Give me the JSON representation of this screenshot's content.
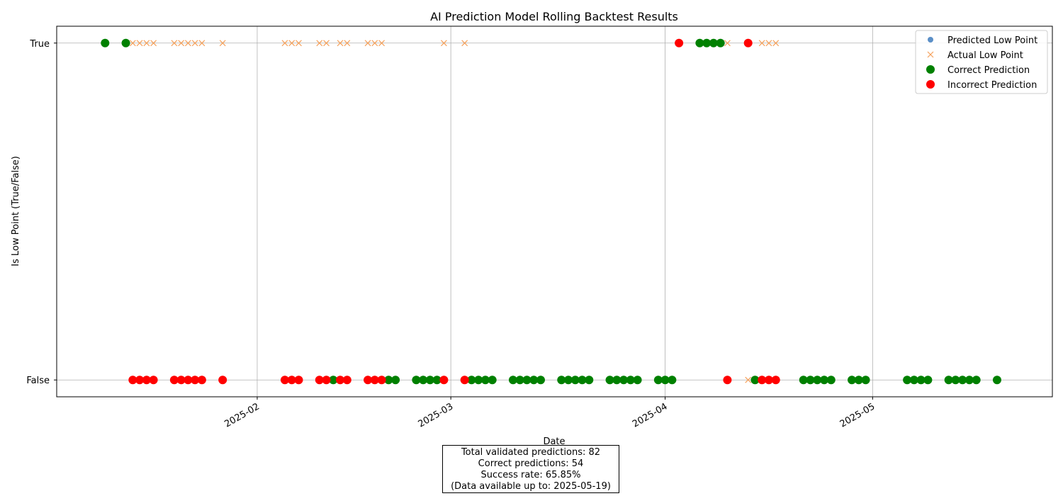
{
  "chart_data": {
    "type": "scatter",
    "title": "AI Prediction Model Rolling Backtest Results",
    "xlabel": "Date",
    "ylabel": "Is Low Point (True/False)",
    "xlim": [
      "2025-01-03",
      "2025-05-27"
    ],
    "xticks": [
      "2025-02",
      "2025-03",
      "2025-04",
      "2025-05"
    ],
    "ylim": [
      -0.05,
      1.05
    ],
    "yticks": [
      {
        "label": "False",
        "value": 0
      },
      {
        "label": "True",
        "value": 1
      }
    ],
    "grid": true,
    "legend_position": "top-right",
    "legend": [
      {
        "label": "Predicted Low Point",
        "marker": "circle-small",
        "color": "#5b8fc7"
      },
      {
        "label": "Actual Low Point",
        "marker": "x",
        "color": "#f5a05a"
      },
      {
        "label": "Correct Prediction",
        "marker": "circle",
        "color": "#008000"
      },
      {
        "label": "Incorrect Prediction",
        "marker": "circle",
        "color": "#ff0000"
      }
    ],
    "series": [
      {
        "name": "Actual Low Point",
        "marker": "x",
        "color": "#f5a05a",
        "points": [
          [
            "2025-01-14",
            1
          ],
          [
            "2025-01-15",
            1
          ],
          [
            "2025-01-16",
            1
          ],
          [
            "2025-01-17",
            1
          ],
          [
            "2025-01-20",
            1
          ],
          [
            "2025-01-21",
            1
          ],
          [
            "2025-01-22",
            1
          ],
          [
            "2025-01-23",
            1
          ],
          [
            "2025-01-24",
            1
          ],
          [
            "2025-01-27",
            1
          ],
          [
            "2025-02-05",
            1
          ],
          [
            "2025-02-06",
            1
          ],
          [
            "2025-02-07",
            1
          ],
          [
            "2025-02-10",
            1
          ],
          [
            "2025-02-11",
            1
          ],
          [
            "2025-02-13",
            1
          ],
          [
            "2025-02-14",
            1
          ],
          [
            "2025-02-17",
            1
          ],
          [
            "2025-02-18",
            1
          ],
          [
            "2025-02-19",
            1
          ],
          [
            "2025-02-28",
            1
          ],
          [
            "2025-03-03",
            1
          ],
          [
            "2025-04-02",
            0
          ],
          [
            "2025-04-10",
            1
          ],
          [
            "2025-04-13",
            0
          ],
          [
            "2025-04-15",
            1
          ],
          [
            "2025-04-16",
            1
          ],
          [
            "2025-04-17",
            1
          ]
        ]
      },
      {
        "name": "Correct Prediction",
        "marker": "circle",
        "color": "#008000",
        "points": [
          [
            "2025-01-10",
            1
          ],
          [
            "2025-01-13",
            1
          ],
          [
            "2025-02-12",
            0
          ],
          [
            "2025-02-20",
            0
          ],
          [
            "2025-02-21",
            0
          ],
          [
            "2025-02-24",
            0
          ],
          [
            "2025-02-25",
            0
          ],
          [
            "2025-02-26",
            0
          ],
          [
            "2025-02-27",
            0
          ],
          [
            "2025-03-04",
            0
          ],
          [
            "2025-03-05",
            0
          ],
          [
            "2025-03-06",
            0
          ],
          [
            "2025-03-07",
            0
          ],
          [
            "2025-03-10",
            0
          ],
          [
            "2025-03-11",
            0
          ],
          [
            "2025-03-12",
            0
          ],
          [
            "2025-03-13",
            0
          ],
          [
            "2025-03-14",
            0
          ],
          [
            "2025-03-17",
            0
          ],
          [
            "2025-03-18",
            0
          ],
          [
            "2025-03-19",
            0
          ],
          [
            "2025-03-20",
            0
          ],
          [
            "2025-03-21",
            0
          ],
          [
            "2025-03-24",
            0
          ],
          [
            "2025-03-25",
            0
          ],
          [
            "2025-03-26",
            0
          ],
          [
            "2025-03-27",
            0
          ],
          [
            "2025-03-28",
            0
          ],
          [
            "2025-03-31",
            0
          ],
          [
            "2025-04-01",
            0
          ],
          [
            "2025-04-02",
            0
          ],
          [
            "2025-04-06",
            1
          ],
          [
            "2025-04-07",
            1
          ],
          [
            "2025-04-08",
            1
          ],
          [
            "2025-04-09",
            1
          ],
          [
            "2025-04-14",
            0
          ],
          [
            "2025-04-21",
            0
          ],
          [
            "2025-04-22",
            0
          ],
          [
            "2025-04-23",
            0
          ],
          [
            "2025-04-24",
            0
          ],
          [
            "2025-04-25",
            0
          ],
          [
            "2025-04-28",
            0
          ],
          [
            "2025-04-29",
            0
          ],
          [
            "2025-04-30",
            0
          ],
          [
            "2025-05-06",
            0
          ],
          [
            "2025-05-07",
            0
          ],
          [
            "2025-05-08",
            0
          ],
          [
            "2025-05-09",
            0
          ],
          [
            "2025-05-12",
            0
          ],
          [
            "2025-05-13",
            0
          ],
          [
            "2025-05-14",
            0
          ],
          [
            "2025-05-15",
            0
          ],
          [
            "2025-05-16",
            0
          ],
          [
            "2025-05-19",
            0
          ]
        ]
      },
      {
        "name": "Incorrect Prediction",
        "marker": "circle",
        "color": "#ff0000",
        "points": [
          [
            "2025-01-14",
            0
          ],
          [
            "2025-01-15",
            0
          ],
          [
            "2025-01-16",
            0
          ],
          [
            "2025-01-17",
            0
          ],
          [
            "2025-01-20",
            0
          ],
          [
            "2025-01-21",
            0
          ],
          [
            "2025-01-22",
            0
          ],
          [
            "2025-01-23",
            0
          ],
          [
            "2025-01-24",
            0
          ],
          [
            "2025-01-27",
            0
          ],
          [
            "2025-02-05",
            0
          ],
          [
            "2025-02-06",
            0
          ],
          [
            "2025-02-07",
            0
          ],
          [
            "2025-02-10",
            0
          ],
          [
            "2025-02-11",
            0
          ],
          [
            "2025-02-13",
            0
          ],
          [
            "2025-02-14",
            0
          ],
          [
            "2025-02-17",
            0
          ],
          [
            "2025-02-18",
            0
          ],
          [
            "2025-02-19",
            0
          ],
          [
            "2025-02-28",
            0
          ],
          [
            "2025-03-03",
            0
          ],
          [
            "2025-04-03",
            1
          ],
          [
            "2025-04-10",
            0
          ],
          [
            "2025-04-13",
            1
          ],
          [
            "2025-04-15",
            0
          ],
          [
            "2025-04-16",
            0
          ],
          [
            "2025-04-17",
            0
          ]
        ]
      }
    ]
  },
  "summary": {
    "total": "Total validated predictions: 82",
    "correct": "Correct predictions: 54",
    "rate": "Success rate: 65.85%",
    "available": "(Data available up to: 2025-05-19)"
  }
}
